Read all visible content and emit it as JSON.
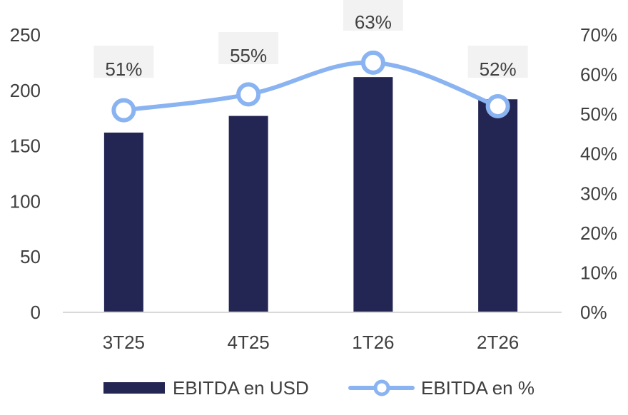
{
  "chart_data": {
    "type": "bar",
    "categories": [
      "3T25",
      "4T25",
      "1T26",
      "2T26"
    ],
    "series": [
      {
        "name": "EBITDA en USD",
        "type": "bar",
        "axis": "left",
        "values": [
          162,
          177,
          212,
          192
        ],
        "color": "#232553"
      },
      {
        "name": "EBITDA en %",
        "type": "line",
        "axis": "right",
        "values": [
          51,
          55,
          63,
          52
        ],
        "labels": [
          "51%",
          "55%",
          "63%",
          "52%"
        ],
        "color": "#8AB3F2"
      }
    ],
    "y_left": {
      "lim": [
        0,
        250
      ],
      "ticks": [
        "0",
        "50",
        "100",
        "150",
        "200",
        "250"
      ]
    },
    "y_right": {
      "lim": [
        0,
        70
      ],
      "ticks": [
        "0%",
        "10%",
        "20%",
        "30%",
        "40%",
        "50%",
        "60%",
        "70%"
      ]
    },
    "title": "",
    "xlabel": "",
    "ylabel": "",
    "grid": false,
    "legend": "bottom",
    "label_box_color": "#F2F2F2",
    "text_color": "#404040",
    "axis_color": "#D9D9D9"
  }
}
